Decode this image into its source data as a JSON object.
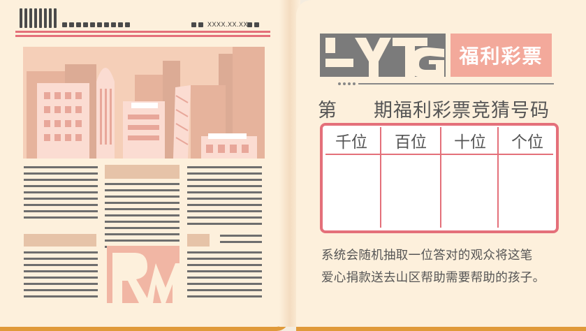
{
  "newspaper": {
    "date_placeholder": "XXXX.XX.XX",
    "logo_letters": "LYTG",
    "title": "福利彩票",
    "heading_prefix": "第",
    "heading_suffix": "期福利彩票竞猜号码",
    "columns": [
      "千位",
      "百位",
      "十位",
      "个位"
    ],
    "description_line1": "系统会随机抽取一位答对的观众将这笔",
    "description_line2": "爱心捐款送去山区帮助需要帮助的孩子。",
    "image_letters": "RM"
  },
  "colors": {
    "accent_red": "#e4707a",
    "title_pink": "#f3a99b",
    "paper": "#fdf0dc",
    "ink": "#4a4a4a"
  }
}
